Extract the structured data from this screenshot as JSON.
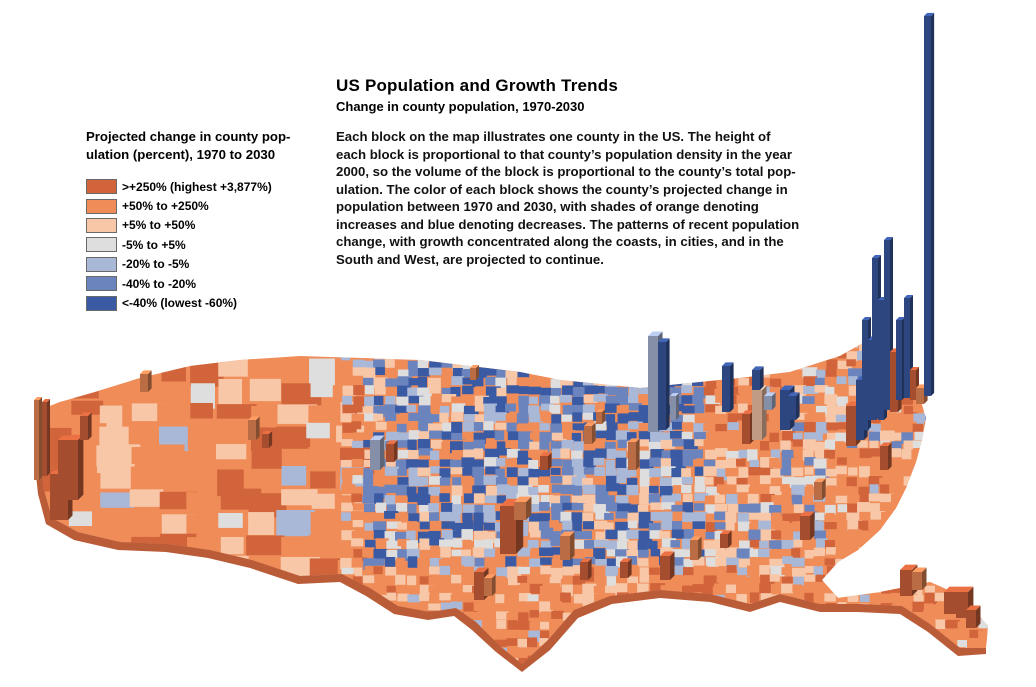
{
  "title": "US Population and Growth Trends",
  "subtitle": "Change in county population, 1970-2030",
  "description": "Each block on the map illustrates one county in the US.  The height of\neach block is proportional to that county’s population density in the year\n2000, so the volume of the block is proportional to the county’s total pop-\nulation.  The color of each block shows the county’s projected change in\npopulation between 1970 and 2030, with shades of orange denoting\nincreases and blue denoting decreases. The patterns of recent population\nchange, with growth concentrated along the coasts, in cities, and in the\nSouth and West, are projected to continue.",
  "legend": {
    "title": "Projected change in county pop-\nulation (percent), 1970 to 2030",
    "items": [
      {
        "label": ">+250% (highest +3,877%)",
        "color": "#d2643c"
      },
      {
        "label": "+50% to +250%",
        "color": "#ef8c58"
      },
      {
        "label": "+5% to +50%",
        "color": "#f7c7a8"
      },
      {
        "label": "-5% to +5%",
        "color": "#dedede"
      },
      {
        "label": "-20% to -5%",
        "color": "#aab8d8"
      },
      {
        "label": "-40% to -20%",
        "color": "#6b84bd"
      },
      {
        "label": "<-40% (lowest -60%)",
        "color": "#3a5aa4"
      }
    ]
  },
  "colors": {
    "orange_dark": "#d2643c",
    "orange": "#ef8c58",
    "peach": "#f7c7a8",
    "gray": "#dedede",
    "blue_light": "#aab8d8",
    "blue": "#6b84bd",
    "blue_dark": "#3a5aa4"
  }
}
